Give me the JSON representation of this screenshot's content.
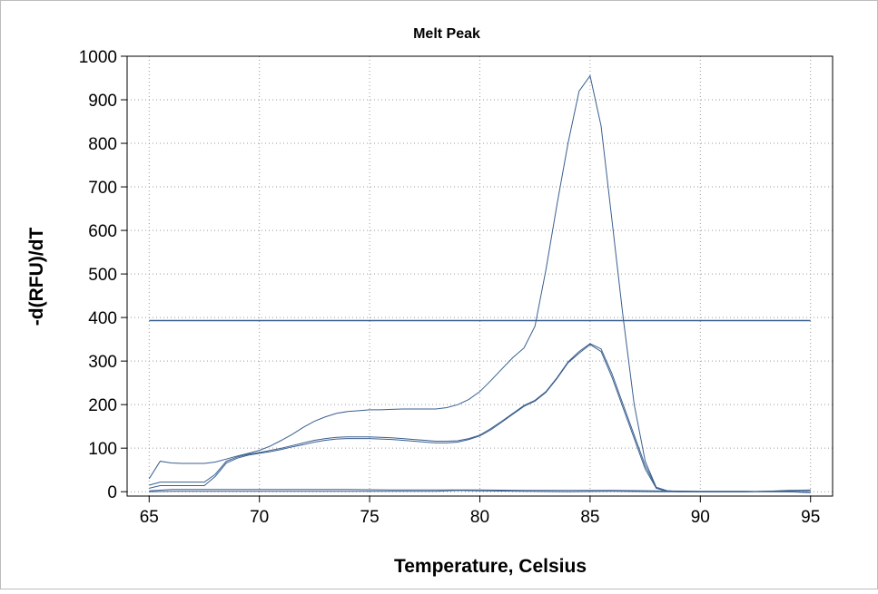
{
  "chart_data": {
    "type": "line",
    "title": "Melt Peak",
    "xlabel": "Temperature, Celsius",
    "ylabel": "-d(RFU)/dT",
    "xlim": [
      64,
      96
    ],
    "ylim": [
      -10,
      1000
    ],
    "xticks": [
      65,
      70,
      75,
      80,
      85,
      90,
      95
    ],
    "yticks": [
      0,
      100,
      200,
      300,
      400,
      500,
      600,
      700,
      800,
      900,
      1000
    ],
    "grid": true,
    "line_color": "#3a5f8f",
    "threshold": 393,
    "series": [
      {
        "x": [
          65,
          65.5,
          66,
          66.5,
          67,
          67.5,
          68,
          68.5,
          69,
          69.5,
          70,
          70.5,
          71,
          71.5,
          72,
          72.5,
          73,
          73.5,
          74,
          74.5,
          75,
          75.5,
          76,
          76.5,
          77,
          77.5,
          78,
          78.5,
          79,
          79.5,
          80,
          80.5,
          81,
          81.5,
          82,
          82.5,
          83,
          83.5,
          84,
          84.5,
          85,
          85.5,
          86,
          86.5,
          87,
          87.5,
          88,
          88.5,
          89,
          90,
          91,
          92,
          93,
          94,
          95
        ],
        "y": [
          30,
          70,
          66,
          65,
          65,
          65,
          68,
          75,
          82,
          88,
          95,
          105,
          118,
          132,
          148,
          162,
          172,
          180,
          184,
          186,
          188,
          188,
          189,
          190,
          190,
          190,
          190,
          193,
          200,
          212,
          230,
          255,
          282,
          308,
          330,
          380,
          510,
          660,
          800,
          920,
          955,
          840,
          620,
          400,
          200,
          70,
          10,
          2,
          1,
          0,
          0,
          0,
          1,
          2,
          3
        ]
      },
      {
        "x": [
          65,
          65.5,
          66,
          66.5,
          67,
          67.5,
          68,
          68.5,
          69,
          69.5,
          70,
          70.5,
          71,
          71.5,
          72,
          72.5,
          73,
          73.5,
          74,
          74.5,
          75,
          75.5,
          76,
          76.5,
          77,
          77.5,
          78,
          78.5,
          79,
          79.5,
          80,
          80.5,
          81,
          81.5,
          82,
          82.5,
          83,
          83.5,
          84,
          84.5,
          85,
          85.5,
          86,
          86.5,
          87,
          87.5,
          88,
          88.5,
          89,
          90,
          91,
          92,
          93,
          94,
          95
        ],
        "y": [
          15,
          22,
          22,
          22,
          22,
          22,
          40,
          70,
          80,
          86,
          90,
          95,
          100,
          106,
          112,
          118,
          122,
          125,
          126,
          126,
          126,
          125,
          124,
          122,
          120,
          118,
          116,
          116,
          117,
          122,
          130,
          145,
          162,
          180,
          198,
          210,
          230,
          262,
          298,
          322,
          340,
          328,
          270,
          200,
          130,
          60,
          10,
          2,
          1,
          0,
          0,
          0,
          1,
          3,
          4
        ]
      },
      {
        "x": [
          65,
          65.5,
          66,
          66.5,
          67,
          67.5,
          68,
          68.5,
          69,
          69.5,
          70,
          70.5,
          71,
          71.5,
          72,
          72.5,
          73,
          73.5,
          74,
          74.5,
          75,
          75.5,
          76,
          76.5,
          77,
          77.5,
          78,
          78.5,
          79,
          79.5,
          80,
          80.5,
          81,
          81.5,
          82,
          82.5,
          83,
          83.5,
          84,
          84.5,
          85,
          85.5,
          86,
          86.5,
          87,
          87.5,
          88,
          88.5,
          89,
          90,
          91,
          92,
          93,
          94,
          95
        ],
        "y": [
          8,
          14,
          14,
          14,
          14,
          14,
          35,
          66,
          77,
          84,
          88,
          92,
          97,
          103,
          108,
          114,
          118,
          121,
          122,
          122,
          122,
          121,
          120,
          118,
          116,
          114,
          112,
          112,
          114,
          120,
          128,
          142,
          160,
          178,
          196,
          208,
          228,
          260,
          296,
          318,
          338,
          322,
          262,
          192,
          122,
          52,
          8,
          1,
          0,
          0,
          0,
          0,
          1,
          2,
          3
        ]
      },
      {
        "x": [
          65,
          66,
          67,
          68,
          70,
          72,
          74,
          76,
          78,
          80,
          82,
          84,
          86,
          88,
          90,
          92,
          94,
          95
        ],
        "y": [
          2,
          5,
          5,
          5,
          5,
          5,
          5,
          4,
          4,
          4,
          3,
          3,
          3,
          2,
          1,
          1,
          0,
          -1
        ]
      },
      {
        "x": [
          65,
          66,
          67,
          68,
          70,
          72,
          74,
          76,
          78,
          79,
          80,
          82,
          84,
          86,
          88,
          90,
          92,
          94,
          95
        ],
        "y": [
          0,
          1,
          1,
          1,
          1,
          1,
          1,
          1,
          1,
          3,
          2,
          1,
          0,
          1,
          0,
          0,
          0,
          0,
          -2
        ]
      },
      {
        "x": [
          65,
          95
        ],
        "y": [
          393,
          393
        ]
      }
    ]
  }
}
